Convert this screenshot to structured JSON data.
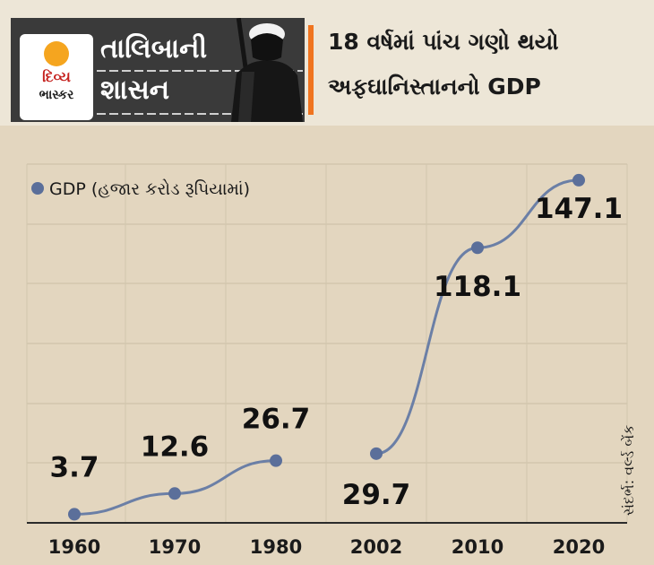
{
  "header": {
    "brand_logo_line1": "દિવ્ય",
    "brand_logo_line2": "ભાસ્કર",
    "section_line1": "તાલિબાની",
    "section_line2": "શાસન",
    "headline_line1": "18 વર્ષમાં પાંચ ગણો થયો",
    "headline_line2": "અફઘાનિસ્તાનનો GDP"
  },
  "source": "સંદર્ભ: વર્લ્ડ બેંક",
  "colors": {
    "background": "#e3d6bf",
    "point": "#5b6f9a",
    "line": "#6b7fa6",
    "accent": "#f0741f"
  },
  "chart_data": {
    "type": "line",
    "categories": [
      "1960",
      "1970",
      "1980",
      "2002",
      "2010",
      "2020"
    ],
    "series": [
      {
        "name": "GDP (હજાર કરોડ રૂપિયામાં)",
        "segments": [
          {
            "x": [
              "1960",
              "1970",
              "1980"
            ],
            "values": [
              3.7,
              12.6,
              26.7
            ]
          },
          {
            "x": [
              "2002",
              "2010",
              "2020"
            ],
            "values": [
              29.7,
              118.1,
              147.1
            ]
          }
        ]
      }
    ],
    "value_labels": [
      "3.7",
      "12.6",
      "26.7",
      "29.7",
      "118.1",
      "147.1"
    ],
    "legend": "top-left",
    "grid": true
  }
}
